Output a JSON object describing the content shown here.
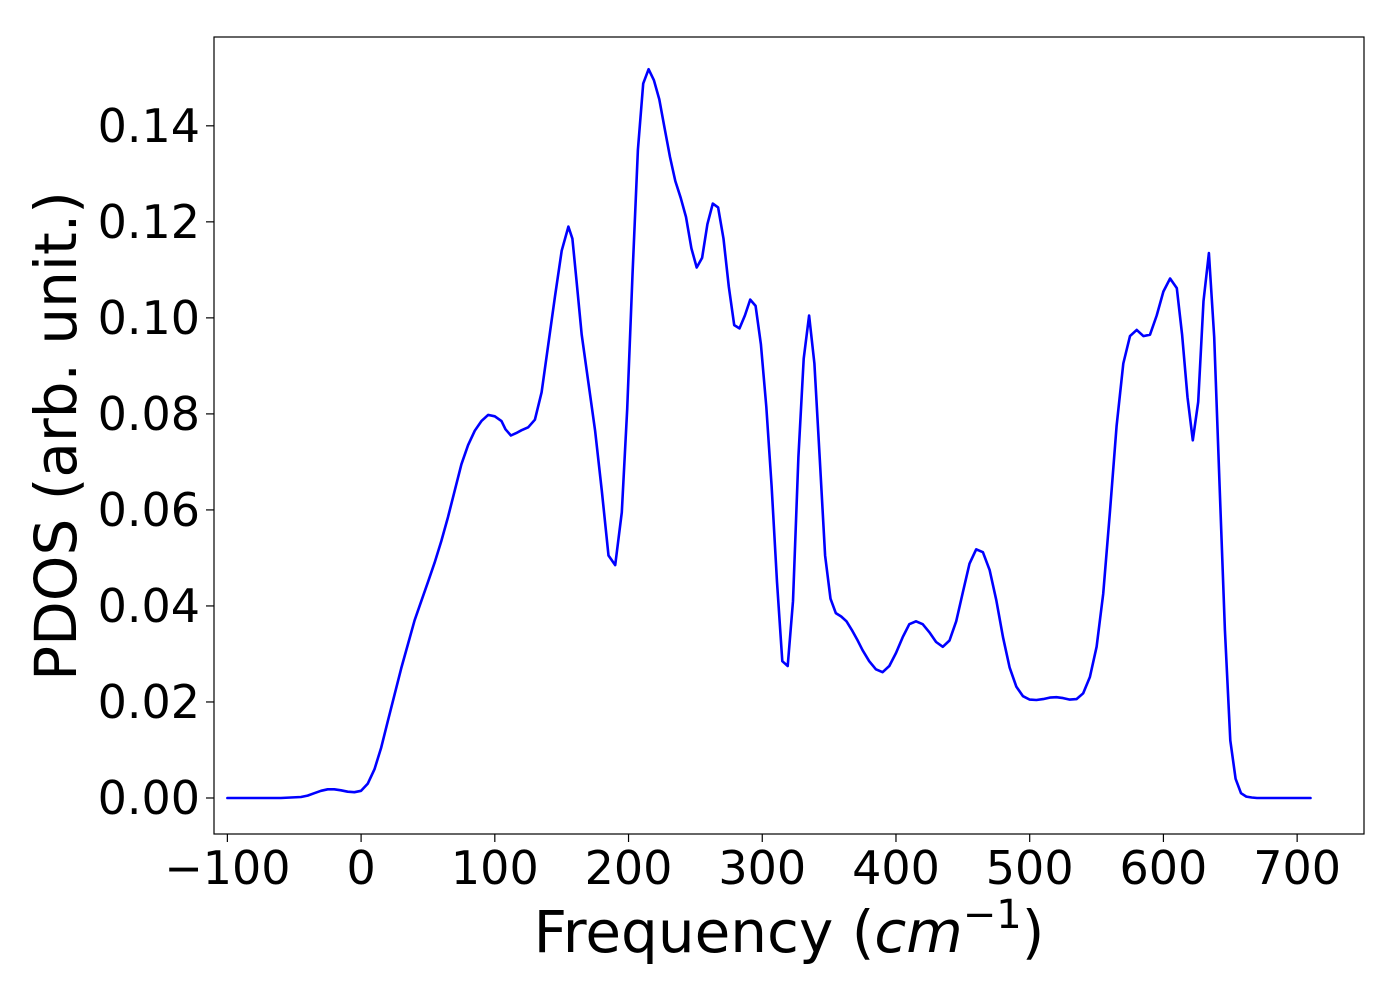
{
  "chart_data": {
    "type": "line",
    "xlabel": {
      "prefix": "Frequency (",
      "unit": "cm",
      "exponent": "−1",
      "suffix": ")"
    },
    "ylabel": "PDOS (arb. unit.)",
    "xlim": [
      -110,
      750
    ],
    "ylim": [
      -0.0075,
      0.1585
    ],
    "xticks": [
      -100,
      0,
      100,
      200,
      300,
      400,
      500,
      600,
      700
    ],
    "xtick_labels": [
      "−100",
      "0",
      "100",
      "200",
      "300",
      "400",
      "500",
      "600",
      "700"
    ],
    "yticks": [
      0.0,
      0.02,
      0.04,
      0.06,
      0.08,
      0.1,
      0.12,
      0.14
    ],
    "ytick_labels": [
      "0.00",
      "0.02",
      "0.04",
      "0.06",
      "0.08",
      "0.10",
      "0.12",
      "0.14"
    ],
    "grid": false,
    "series": [
      {
        "color": "#0000ff",
        "x": [
          -100,
          -60,
          -45,
          -40,
          -35,
          -30,
          -25,
          -20,
          -15,
          -10,
          -5,
          0,
          5,
          10,
          15,
          20,
          25,
          30,
          35,
          40,
          45,
          50,
          55,
          60,
          65,
          70,
          75,
          80,
          85,
          90,
          95,
          100,
          105,
          108,
          112,
          116,
          120,
          125,
          130,
          135,
          140,
          145,
          150,
          155,
          158,
          161,
          165,
          170,
          175,
          180,
          185,
          190,
          195,
          199,
          203,
          207,
          211,
          215,
          219,
          223,
          227,
          231,
          235,
          239,
          243,
          247,
          251,
          255,
          259,
          263,
          267,
          271,
          275,
          279,
          283,
          287,
          291,
          295,
          299,
          303,
          307,
          311,
          315,
          319,
          323,
          327,
          331,
          335,
          339,
          343,
          347,
          351,
          355,
          359,
          363,
          367,
          371,
          375,
          380,
          385,
          390,
          395,
          400,
          405,
          410,
          415,
          420,
          425,
          430,
          435,
          440,
          445,
          450,
          455,
          460,
          465,
          470,
          475,
          480,
          485,
          490,
          495,
          500,
          505,
          510,
          515,
          520,
          525,
          530,
          535,
          540,
          545,
          550,
          555,
          560,
          565,
          570,
          575,
          580,
          585,
          590,
          595,
          600,
          605,
          610,
          614,
          618,
          622,
          626,
          630,
          634,
          638,
          642,
          646,
          650,
          654,
          658,
          662,
          666,
          670,
          710
        ],
        "y": [
          0.0,
          0.0,
          0.0002,
          0.0005,
          0.001,
          0.0015,
          0.0018,
          0.0018,
          0.0016,
          0.0013,
          0.0012,
          0.0015,
          0.003,
          0.006,
          0.0105,
          0.016,
          0.0215,
          0.027,
          0.032,
          0.037,
          0.041,
          0.045,
          0.049,
          0.0535,
          0.0585,
          0.064,
          0.0695,
          0.0735,
          0.0765,
          0.0785,
          0.0798,
          0.0795,
          0.0785,
          0.0768,
          0.0755,
          0.076,
          0.0766,
          0.0772,
          0.0788,
          0.0845,
          0.0945,
          0.1045,
          0.114,
          0.119,
          0.1165,
          0.108,
          0.0965,
          0.0865,
          0.0765,
          0.064,
          0.0505,
          0.0485,
          0.0595,
          0.081,
          0.109,
          0.135,
          0.1488,
          0.1518,
          0.1495,
          0.1455,
          0.1395,
          0.1335,
          0.1285,
          0.125,
          0.121,
          0.1145,
          0.1105,
          0.1125,
          0.1195,
          0.1238,
          0.123,
          0.1165,
          0.1065,
          0.0985,
          0.0978,
          0.1005,
          0.1038,
          0.1025,
          0.0945,
          0.0815,
          0.065,
          0.045,
          0.0285,
          0.0275,
          0.041,
          0.071,
          0.0915,
          0.1005,
          0.0905,
          0.0705,
          0.0505,
          0.0415,
          0.0385,
          0.0378,
          0.0368,
          0.035,
          0.033,
          0.0308,
          0.0285,
          0.0268,
          0.0262,
          0.0275,
          0.0302,
          0.0335,
          0.0362,
          0.0368,
          0.0362,
          0.0345,
          0.0325,
          0.0315,
          0.0328,
          0.0368,
          0.0428,
          0.0488,
          0.0518,
          0.0512,
          0.0475,
          0.0412,
          0.0335,
          0.0272,
          0.0232,
          0.0212,
          0.0205,
          0.0204,
          0.0206,
          0.0209,
          0.021,
          0.0208,
          0.0205,
          0.0206,
          0.0218,
          0.0252,
          0.0315,
          0.0425,
          0.0595,
          0.0775,
          0.0905,
          0.0962,
          0.0975,
          0.0962,
          0.0965,
          0.1005,
          0.1055,
          0.1082,
          0.1062,
          0.0965,
          0.0835,
          0.0745,
          0.0825,
          0.1035,
          0.1135,
          0.096,
          0.065,
          0.035,
          0.012,
          0.004,
          0.001,
          0.0003,
          0.0001,
          0.0,
          0.0
        ]
      }
    ]
  }
}
